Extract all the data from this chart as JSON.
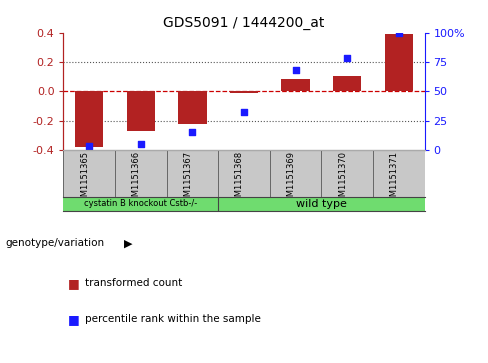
{
  "title": "GDS5091 / 1444200_at",
  "samples": [
    "GSM1151365",
    "GSM1151366",
    "GSM1151367",
    "GSM1151368",
    "GSM1151369",
    "GSM1151370",
    "GSM1151371"
  ],
  "transformed_count": [
    -0.38,
    -0.27,
    -0.225,
    -0.01,
    0.085,
    0.105,
    0.39
  ],
  "percentile_rank": [
    3,
    5,
    15,
    32,
    68,
    78,
    100
  ],
  "groups": [
    {
      "label": "cystatin B knockout Cstb-/-",
      "start": 0,
      "end": 3
    },
    {
      "label": "wild type",
      "start": 3,
      "end": 7
    }
  ],
  "ylim_left": [
    -0.4,
    0.4
  ],
  "ylim_right": [
    0,
    100
  ],
  "left_yticks": [
    -0.4,
    -0.2,
    0.0,
    0.2,
    0.4
  ],
  "right_yticks": [
    0,
    25,
    50,
    75,
    100
  ],
  "right_yticklabels": [
    "0",
    "25",
    "50",
    "75",
    "100%"
  ],
  "bar_color": "#b22222",
  "dot_color": "#1a1aff",
  "zero_line_color": "#cc0000",
  "dotted_line_color": "#555555",
  "background_color": "#ffffff",
  "sample_bg_color": "#c8c8c8",
  "group_bg_color": "#6fdc6f",
  "label_transformed": "transformed count",
  "label_percentile": "percentile rank within the sample",
  "genotype_label": "genotype/variation"
}
